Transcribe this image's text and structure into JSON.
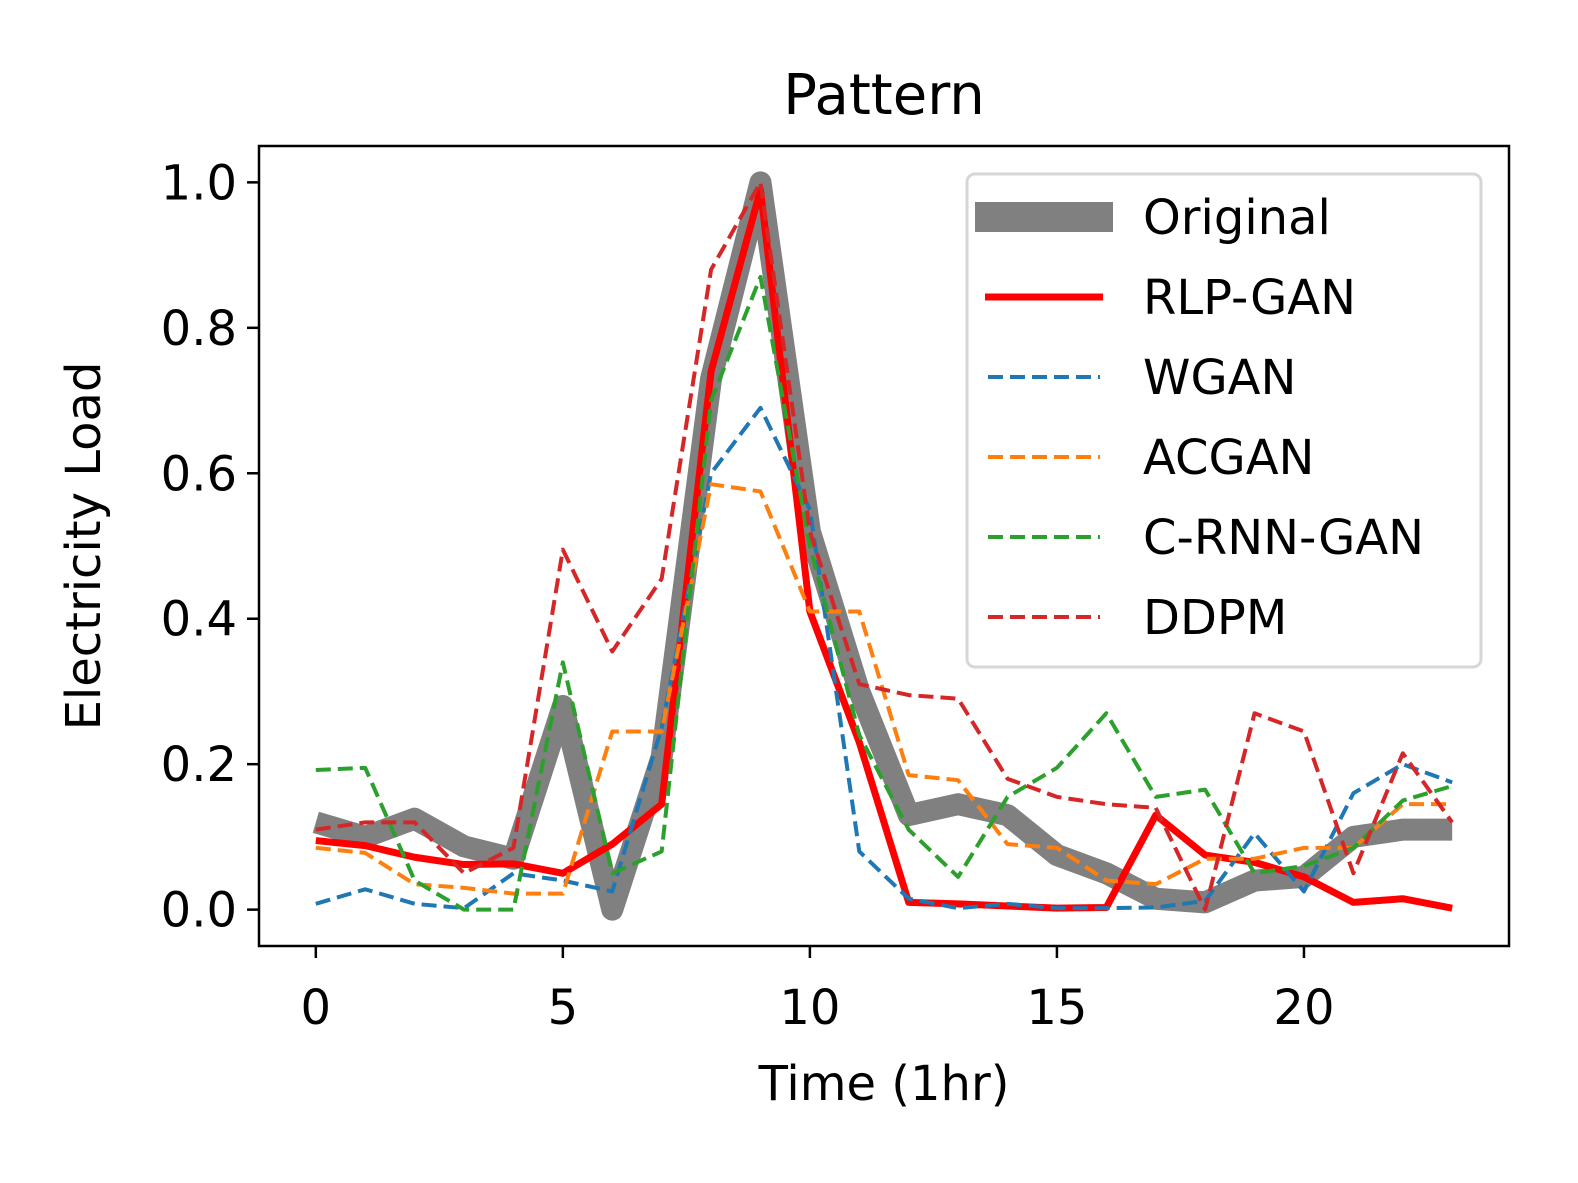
{
  "chart_data": {
    "type": "line",
    "title": "Pattern",
    "xlabel": "Time (1hr)",
    "ylabel": "Electricity Load",
    "xlim": [
      -1.15,
      24.15
    ],
    "ylim": [
      -0.05,
      1.05
    ],
    "xticks": [
      0,
      5,
      10,
      15,
      20
    ],
    "xtick_labels": [
      "0",
      "5",
      "10",
      "15",
      "20"
    ],
    "yticks": [
      0.0,
      0.2,
      0.4,
      0.6,
      0.8,
      1.0
    ],
    "ytick_labels": [
      "0.0",
      "0.2",
      "0.4",
      "0.6",
      "0.8",
      "1.0"
    ],
    "grid": false,
    "legend_position": "top-right",
    "x": [
      0,
      1,
      2,
      3,
      4,
      5,
      6,
      7,
      8,
      9,
      10,
      11,
      12,
      13,
      14,
      15,
      16,
      17,
      18,
      19,
      20,
      21,
      22,
      23
    ],
    "series": [
      {
        "name": "Original",
        "color": "#808080",
        "style": "solid-thick",
        "values": [
          0.12,
          0.1,
          0.125,
          0.087,
          0.07,
          0.28,
          0.0,
          0.21,
          0.73,
          1.0,
          0.52,
          0.3,
          0.13,
          0.145,
          0.13,
          0.075,
          0.05,
          0.015,
          0.01,
          0.04,
          0.045,
          0.1,
          0.11,
          0.11
        ]
      },
      {
        "name": "RLP-GAN",
        "color": "#ff0000",
        "style": "solid",
        "values": [
          0.095,
          0.088,
          0.072,
          0.062,
          0.063,
          0.05,
          0.09,
          0.145,
          0.74,
          0.99,
          0.41,
          0.23,
          0.01,
          0.008,
          0.005,
          0.002,
          0.003,
          0.13,
          0.075,
          0.065,
          0.045,
          0.01,
          0.015,
          0.002
        ]
      },
      {
        "name": "WGAN",
        "color": "#1f77b4",
        "style": "dashed",
        "values": [
          0.008,
          0.028,
          0.008,
          0.002,
          0.05,
          0.04,
          0.025,
          0.25,
          0.6,
          0.69,
          0.55,
          0.08,
          0.015,
          0.002,
          0.008,
          0.002,
          0.002,
          0.003,
          0.012,
          0.105,
          0.025,
          0.16,
          0.2,
          0.175
        ]
      },
      {
        "name": "ACGAN",
        "color": "#ff7f0e",
        "style": "dashed",
        "values": [
          0.085,
          0.078,
          0.035,
          0.03,
          0.022,
          0.022,
          0.245,
          0.245,
          0.585,
          0.575,
          0.41,
          0.41,
          0.185,
          0.178,
          0.09,
          0.085,
          0.04,
          0.035,
          0.07,
          0.07,
          0.085,
          0.085,
          0.145,
          0.145
        ]
      },
      {
        "name": "C-RNN-GAN",
        "color": "#2ca02c",
        "style": "dashed",
        "values": [
          0.192,
          0.195,
          0.04,
          0.0,
          0.0,
          0.34,
          0.05,
          0.08,
          0.7,
          0.87,
          0.5,
          0.24,
          0.11,
          0.045,
          0.155,
          0.195,
          0.27,
          0.155,
          0.165,
          0.05,
          0.06,
          0.085,
          0.15,
          0.17
        ]
      },
      {
        "name": "DDPM",
        "color": "#d62728",
        "style": "dashed",
        "values": [
          0.11,
          0.12,
          0.12,
          0.05,
          0.085,
          0.495,
          0.355,
          0.455,
          0.88,
          1.0,
          0.52,
          0.31,
          0.295,
          0.29,
          0.18,
          0.155,
          0.145,
          0.14,
          0.0,
          0.27,
          0.245,
          0.05,
          0.215,
          0.12
        ]
      }
    ]
  }
}
